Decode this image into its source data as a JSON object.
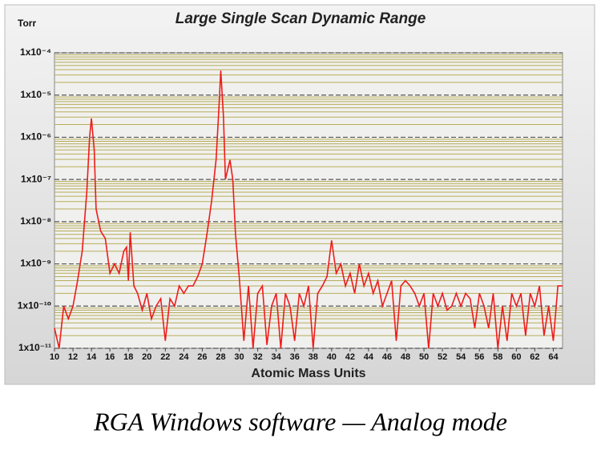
{
  "chart_data": {
    "type": "line",
    "title": "Large Single Scan Dynamic Range",
    "y_unit": "Torr",
    "xlabel": "Atomic Mass Units",
    "caption": "RGA Windows software — Analog mode",
    "log_y": true,
    "grid": true,
    "xlim": [
      10,
      65
    ],
    "xticks": [
      10,
      12,
      14,
      16,
      18,
      20,
      22,
      24,
      26,
      28,
      30,
      32,
      34,
      36,
      38,
      40,
      42,
      44,
      46,
      48,
      50,
      52,
      54,
      56,
      58,
      60,
      62,
      64
    ],
    "ylim": [
      1e-11,
      0.0001
    ],
    "yticks": [
      {
        "value": 1e-11,
        "label": "1x10⁻¹¹"
      },
      {
        "value": 1e-10,
        "label": "1x10⁻¹⁰"
      },
      {
        "value": 1e-09,
        "label": "1x10⁻⁹"
      },
      {
        "value": 1e-08,
        "label": "1x10⁻⁸"
      },
      {
        "value": 1e-07,
        "label": "1x10⁻⁷"
      },
      {
        "value": 1e-06,
        "label": "1x10⁻⁶"
      },
      {
        "value": 1e-05,
        "label": "1x10⁻⁵"
      },
      {
        "value": 0.0001,
        "label": "1x10⁻⁴"
      }
    ],
    "minor_yticks": [
      2e-11,
      3e-11,
      4e-11,
      5e-11,
      6e-11,
      7e-11,
      8e-11,
      9e-11,
      2e-10,
      3e-10,
      4e-10,
      5e-10,
      6e-10,
      7e-10,
      8e-10,
      9e-10,
      2e-09,
      3e-09,
      4e-09,
      5e-09,
      6e-09,
      7e-09,
      8e-09,
      9e-09,
      2e-08,
      3e-08,
      4e-08,
      5e-08,
      6e-08,
      7e-08,
      8e-08,
      9e-08,
      2e-07,
      3e-07,
      4e-07,
      5e-07,
      6e-07,
      7e-07,
      8e-07,
      9e-07,
      2e-06,
      3e-06,
      4e-06,
      5e-06,
      6e-06,
      7e-06,
      8e-06,
      9e-06,
      2e-05,
      3e-05,
      4e-05,
      5e-05,
      6e-05,
      7e-05,
      8e-05,
      9e-05
    ],
    "minor_grid_color": "#b8ad5a",
    "major_grid_color": "#555555",
    "series": [
      {
        "color": "#ee1c1c",
        "x": [
          10,
          10.5,
          11,
          11.5,
          12,
          12.5,
          13,
          13.5,
          13.8,
          14,
          14.3,
          14.5,
          15,
          15.5,
          16,
          16.5,
          17,
          17.5,
          17.8,
          18,
          18.2,
          18.6,
          19,
          19.5,
          20,
          20.5,
          21,
          21.5,
          22,
          22.5,
          23,
          23.5,
          24,
          24.5,
          25,
          25.5,
          26,
          26.5,
          27,
          27.5,
          27.8,
          28,
          28.3,
          28.5,
          29,
          29.3,
          29.6,
          30,
          30.5,
          31,
          31.5,
          32,
          32.5,
          33,
          33.5,
          34,
          34.5,
          35,
          35.5,
          36,
          36.5,
          37,
          37.5,
          38,
          38.5,
          39,
          39.5,
          40,
          40.5,
          41,
          41.5,
          42,
          42.5,
          43,
          43.5,
          44,
          44.5,
          45,
          45.5,
          46,
          46.5,
          47,
          47.5,
          48,
          48.5,
          49,
          49.5,
          50,
          50.5,
          51,
          51.5,
          52,
          52.5,
          53,
          53.5,
          54,
          54.5,
          55,
          55.5,
          56,
          56.5,
          57,
          57.5,
          58,
          58.5,
          59,
          59.5,
          60,
          60.5,
          61,
          61.5,
          62,
          62.5,
          63,
          63.5,
          64,
          64.5,
          65
        ],
        "values": [
          3e-11,
          1e-11,
          1e-10,
          5e-11,
          1e-10,
          4e-10,
          2e-09,
          5e-08,
          1e-06,
          2.8e-06,
          5e-07,
          2e-08,
          6e-09,
          4e-09,
          6e-10,
          1e-09,
          6e-10,
          2e-09,
          2.5e-09,
          4e-10,
          5.6e-09,
          3e-10,
          2e-10,
          8e-11,
          2e-10,
          5e-11,
          1e-10,
          1.5e-10,
          1.5e-11,
          1.5e-10,
          1e-10,
          3e-10,
          2e-10,
          3e-10,
          3e-10,
          5e-10,
          1e-09,
          5e-09,
          3e-08,
          3e-07,
          5e-06,
          3.8e-05,
          3e-06,
          1e-07,
          2.9e-07,
          1e-07,
          5e-09,
          5e-10,
          1.5e-11,
          3e-10,
          1e-11,
          2e-10,
          3e-10,
          1.2e-11,
          1e-10,
          2e-10,
          1e-11,
          2e-10,
          1e-10,
          1.5e-11,
          2e-10,
          1e-10,
          3e-10,
          1e-11,
          2e-10,
          3e-10,
          5e-10,
          3.6e-09,
          6e-10,
          1e-09,
          3e-10,
          6e-10,
          2e-10,
          1e-09,
          3e-10,
          6e-10,
          2e-10,
          4e-10,
          1e-10,
          2e-10,
          4e-10,
          1.5e-11,
          3e-10,
          4e-10,
          3e-10,
          2e-10,
          1e-10,
          2e-10,
          1e-11,
          2e-10,
          1e-10,
          2e-10,
          8e-11,
          1e-10,
          2e-10,
          1e-10,
          2e-10,
          1.5e-10,
          3e-11,
          2e-10,
          1e-10,
          3e-11,
          2e-10,
          1e-11,
          1e-10,
          1.5e-11,
          2e-10,
          1e-10,
          2e-10,
          2e-11,
          2e-10,
          1e-10,
          3e-10,
          2e-11,
          1e-10,
          1.5e-11,
          3e-10,
          3e-10
        ]
      }
    ]
  }
}
